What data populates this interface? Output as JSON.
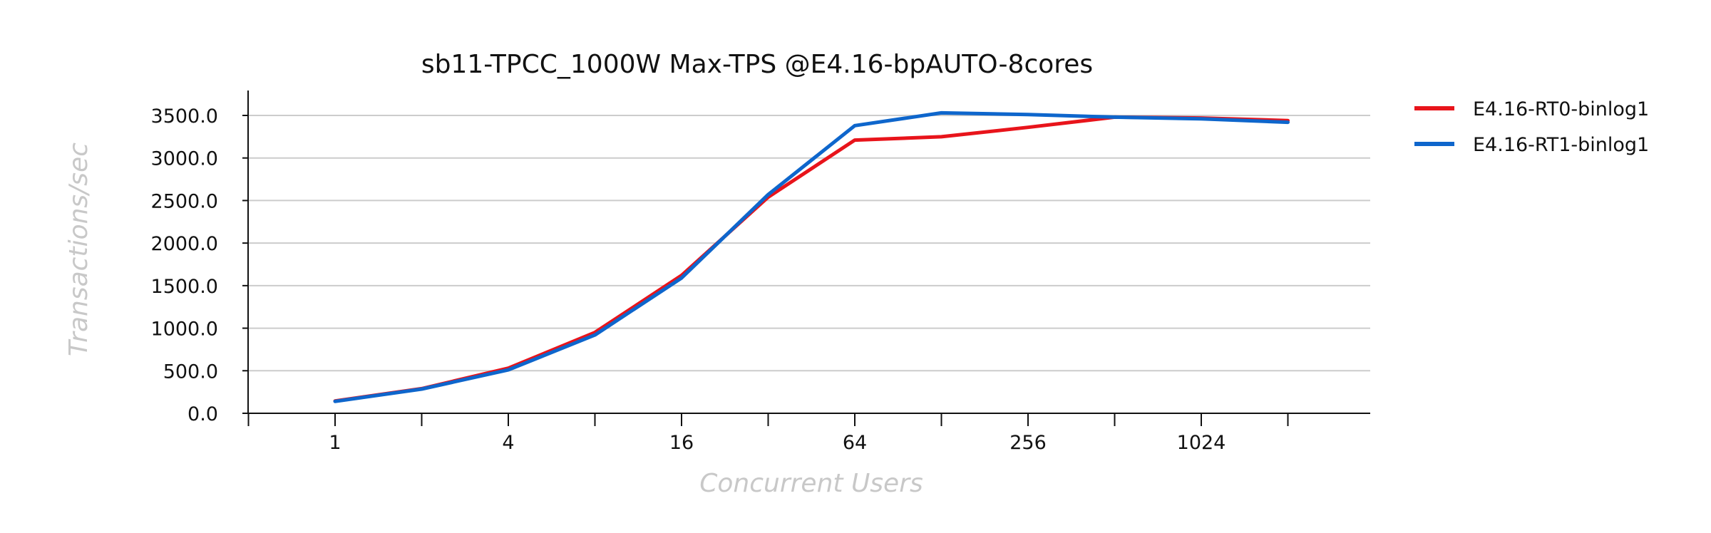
{
  "chart_data": {
    "type": "line",
    "title": "sb11-TPCC_1000W Max-TPS @E4.16-bpAUTO-8cores",
    "xlabel": "Concurrent Users",
    "ylabel": "Transactions/sec",
    "x_scale": "log2",
    "x": [
      1,
      2,
      4,
      8,
      16,
      32,
      64,
      128,
      256,
      512,
      1024,
      2048
    ],
    "x_tick_labels": [
      "1",
      "4",
      "16",
      "64",
      "256",
      "1024"
    ],
    "x_tick_values": [
      1,
      4,
      16,
      64,
      256,
      1024
    ],
    "ylim": [
      0,
      3500
    ],
    "y_ticks": [
      "0.0",
      "500.0",
      "1000.0",
      "1500.0",
      "2000.0",
      "2500.0",
      "3000.0",
      "3500.0"
    ],
    "y_tick_values": [
      0,
      500,
      1000,
      1500,
      2000,
      2500,
      3000,
      3500
    ],
    "grid": true,
    "legend_position": "outside-right",
    "series": [
      {
        "name": "E4.16-RT0-binlog1",
        "color": "#e8141b",
        "values": [
          145,
          290,
          530,
          950,
          1620,
          2540,
          3210,
          3250,
          3360,
          3480,
          3470,
          3440
        ]
      },
      {
        "name": "E4.16-RT1-binlog1",
        "color": "#0e66cc",
        "values": [
          140,
          285,
          510,
          920,
          1590,
          2570,
          3380,
          3530,
          3510,
          3480,
          3460,
          3420
        ]
      }
    ]
  }
}
